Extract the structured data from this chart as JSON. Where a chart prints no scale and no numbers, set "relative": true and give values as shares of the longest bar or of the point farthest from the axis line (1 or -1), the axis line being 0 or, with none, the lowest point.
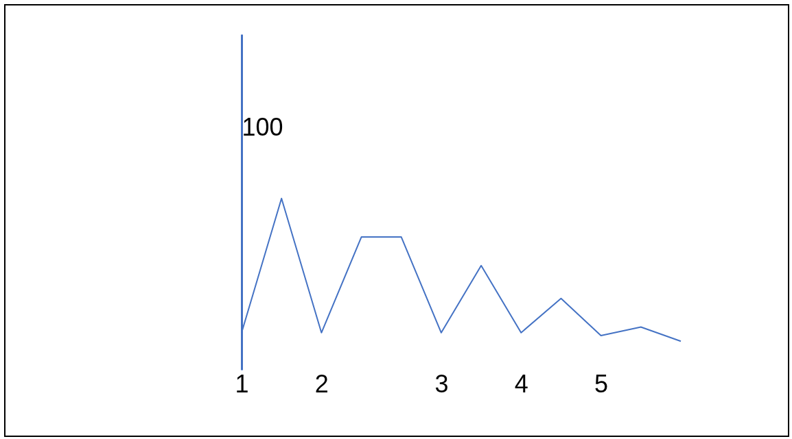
{
  "chart_data": {
    "type": "line",
    "relative": true,
    "categories": [
      "1",
      null,
      "2",
      null,
      null,
      "3",
      null,
      "4",
      null,
      "5",
      null,
      null
    ],
    "series": [
      {
        "color": "#4472c4",
        "values": [
          0.06,
          1,
          0.06,
          0.73,
          0.73,
          0.06,
          0.53,
          0.06,
          0.3,
          0.04,
          0.1,
          0
        ]
      }
    ],
    "annotations": [
      "100"
    ],
    "grid": false,
    "legend": false,
    "marker": "none",
    "line_style": "solid"
  }
}
